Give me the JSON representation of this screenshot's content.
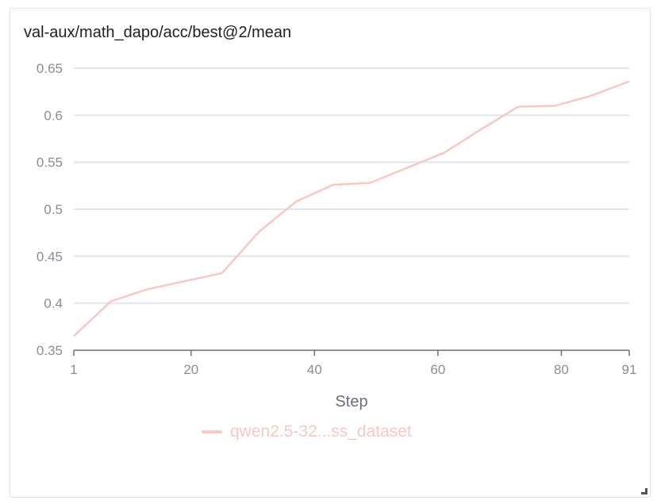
{
  "chart_data": {
    "type": "line",
    "title": "val-aux/math_dapo/acc/best@2/mean",
    "xlabel": "Step",
    "ylabel": "",
    "xlim": [
      1,
      91
    ],
    "ylim": [
      0.35,
      0.65
    ],
    "xticks": [
      1,
      20,
      40,
      60,
      80,
      91
    ],
    "yticks": [
      0.35,
      0.4,
      0.45,
      0.5,
      0.55,
      0.6,
      0.65
    ],
    "ytick_labels": [
      "0.35",
      "0.4",
      "0.45",
      "0.5",
      "0.55",
      "0.6",
      "0.65"
    ],
    "grid": "horizontal",
    "legend_position": "bottom",
    "series": [
      {
        "name": "qwen2.5-32...ss_dataset",
        "color": "#f7c8c6",
        "x": [
          1,
          7,
          13,
          25,
          31,
          37,
          43,
          49,
          55,
          61,
          67,
          73,
          79,
          85,
          91
        ],
        "y": [
          0.365,
          0.402,
          0.415,
          0.432,
          0.476,
          0.508,
          0.526,
          0.528,
          0.544,
          0.56,
          0.585,
          0.609,
          0.61,
          0.621,
          0.636
        ]
      }
    ]
  }
}
